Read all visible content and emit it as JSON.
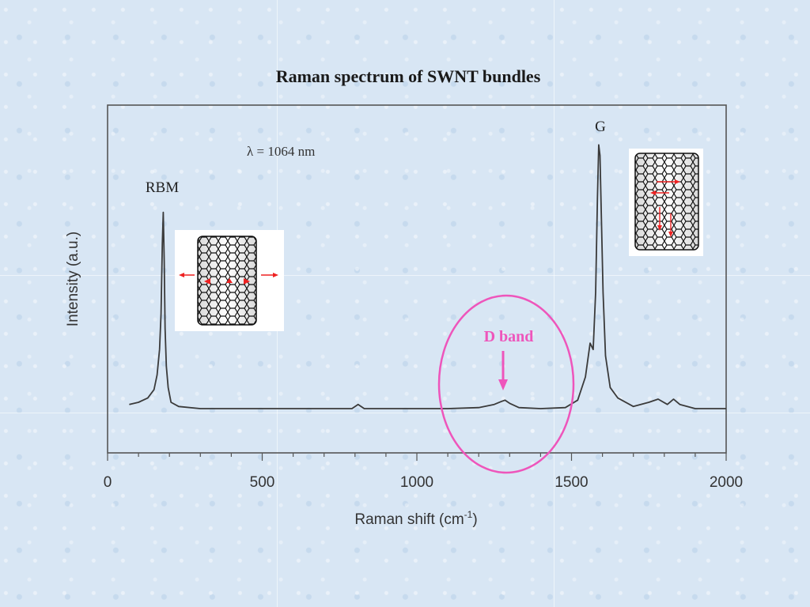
{
  "chart_data": {
    "type": "line",
    "title": "Raman spectrum of SWNT bundles",
    "xlabel": "Raman shift (cm",
    "xlabel_sup": "-1",
    "xlabel_tail": ")",
    "ylabel": "Intensity (a.u.)",
    "xlim": [
      0,
      2000
    ],
    "ylim": [
      0,
      1
    ],
    "x_ticks": [
      0,
      500,
      1000,
      1500,
      2000
    ],
    "x_tick_labels": [
      "0",
      "500",
      "1000",
      "1500",
      "2000"
    ],
    "grid": false,
    "annotation_wavelength": "λ  = 1064 nm",
    "peak_labels": [
      {
        "text": "RBM",
        "x": 180
      },
      {
        "text": "G",
        "x": 1592
      },
      {
        "text": "D band",
        "x": 1285
      }
    ],
    "series": [
      {
        "x": [
          70,
          100,
          130,
          150,
          160,
          168,
          173,
          177,
          180,
          183,
          186,
          190,
          196,
          205,
          230,
          300,
          400,
          500,
          600,
          700,
          790,
          810,
          830,
          900,
          1000,
          1100,
          1200,
          1250,
          1275,
          1285,
          1300,
          1330,
          1400,
          1480,
          1520,
          1545,
          1560,
          1570,
          1578,
          1584,
          1588,
          1592,
          1596,
          1602,
          1610,
          1625,
          1650,
          1700,
          1750,
          1780,
          1810,
          1830,
          1850,
          1900,
          1950,
          2000
        ],
        "y": [
          0.02,
          0.03,
          0.05,
          0.09,
          0.16,
          0.28,
          0.45,
          0.78,
          0.93,
          0.7,
          0.38,
          0.2,
          0.1,
          0.03,
          0.01,
          0.0,
          0.0,
          0.0,
          0.0,
          0.0,
          0.0,
          0.02,
          0.0,
          0.0,
          0.0,
          0.0,
          0.005,
          0.02,
          0.035,
          0.04,
          0.025,
          0.005,
          0.0,
          0.005,
          0.04,
          0.15,
          0.31,
          0.28,
          0.55,
          1.0,
          1.25,
          1.2,
          0.95,
          0.55,
          0.25,
          0.1,
          0.05,
          0.01,
          0.03,
          0.045,
          0.02,
          0.045,
          0.02,
          0.0,
          0.0,
          0.0
        ]
      }
    ],
    "colors": {
      "line": "#3a3a3a",
      "frame": "#555555",
      "d_band": "#ee55bb",
      "phonon_arrow": "#ee2222"
    }
  }
}
